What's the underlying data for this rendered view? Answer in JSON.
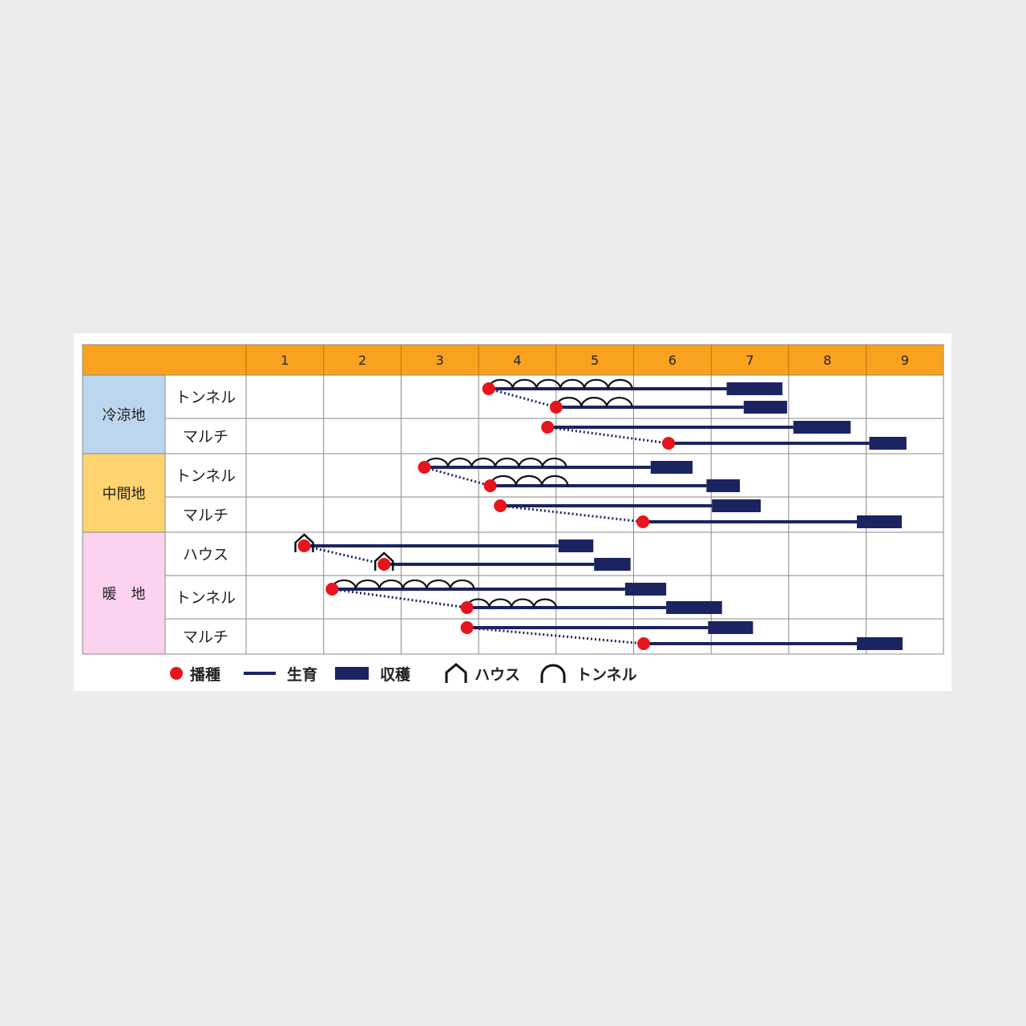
{
  "chart_data": {
    "type": "gantt",
    "title": "",
    "x_unit": "month",
    "months": [
      "1",
      "2",
      "3",
      "4",
      "5",
      "6",
      "7",
      "8",
      "9"
    ],
    "xlim": [
      1,
      10
    ],
    "groups": [
      {
        "label": "冷涼地",
        "color": "#bcd6f0",
        "rows": [
          {
            "label": "トンネル",
            "entries": [
              {
                "sow": 4.13,
                "tunnel_end": 5.98,
                "harvest": [
                  7.2,
                  7.92
                ]
              },
              {
                "sow": 5.0,
                "tunnel_end": 5.98,
                "harvest": [
                  7.42,
                  7.98
                ]
              }
            ]
          },
          {
            "label": "マルチ",
            "entries": [
              {
                "sow": 4.89,
                "harvest": [
                  8.06,
                  8.8
                ]
              },
              {
                "sow": 6.45,
                "harvest": [
                  9.04,
                  9.52
                ]
              }
            ]
          }
        ]
      },
      {
        "label": "中間地",
        "color": "#fdd470",
        "rows": [
          {
            "label": "トンネル",
            "entries": [
              {
                "sow": 3.3,
                "tunnel_end": 5.13,
                "harvest": [
                  6.22,
                  6.76
                ]
              },
              {
                "sow": 4.15,
                "tunnel_end": 5.15,
                "harvest": [
                  6.94,
                  7.37
                ]
              }
            ]
          },
          {
            "label": "マルチ",
            "entries": [
              {
                "sow": 4.28,
                "harvest": [
                  7.01,
                  7.64
                ]
              },
              {
                "sow": 6.12,
                "harvest": [
                  8.88,
                  9.46
                ]
              }
            ]
          }
        ]
      },
      {
        "label": "暖　地",
        "color": "#fbd2ef",
        "rows": [
          {
            "label": "ハウス",
            "entries": [
              {
                "sow": 1.75,
                "house": true,
                "harvest": [
                  5.03,
                  5.48
                ]
              },
              {
                "sow": 2.78,
                "house": true,
                "harvest": [
                  5.49,
                  5.96
                ]
              }
            ]
          },
          {
            "label": "トンネル",
            "entries": [
              {
                "sow": 2.11,
                "tunnel_end": 3.94,
                "harvest": [
                  5.89,
                  6.42
                ]
              },
              {
                "sow": 3.85,
                "tunnel_end": 5.0,
                "harvest": [
                  6.42,
                  7.14
                ]
              }
            ]
          },
          {
            "label": "マルチ",
            "entries": [
              {
                "sow": 3.85,
                "harvest": [
                  6.96,
                  7.54
                ]
              },
              {
                "sow": 6.13,
                "harvest": [
                  8.88,
                  9.47
                ]
              }
            ]
          }
        ]
      }
    ],
    "legend": [
      {
        "key": "sow",
        "label": "播種"
      },
      {
        "key": "growth",
        "label": "生育"
      },
      {
        "key": "harvest",
        "label": "収穫"
      },
      {
        "key": "house",
        "label": "ハウス"
      },
      {
        "key": "tunnel",
        "label": "トンネル"
      }
    ],
    "colors": {
      "header": "#f9a21e",
      "sow": "#e8141b",
      "growth": "#1b2461",
      "harvest": "#1b2461",
      "grid": "#8a8a8a",
      "cover": "#111111"
    }
  }
}
